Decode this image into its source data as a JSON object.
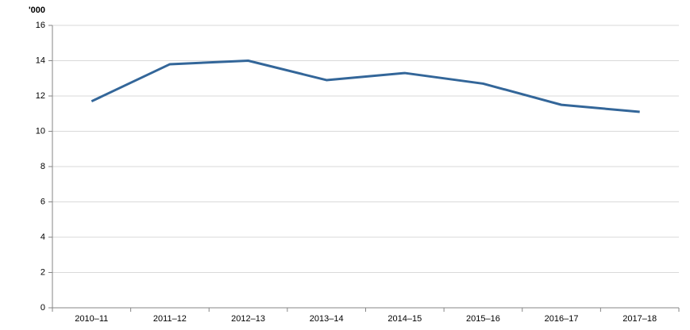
{
  "chart_data": {
    "type": "line",
    "y_unit_label": "'000",
    "categories": [
      "2010–11",
      "2011–12",
      "2012–13",
      "2013–14",
      "2014–15",
      "2015–16",
      "2016–17",
      "2017–18"
    ],
    "series": [
      {
        "name": "Series",
        "color": "#336699",
        "values": [
          11.7,
          13.8,
          14.0,
          12.9,
          13.3,
          12.7,
          11.5,
          11.1
        ]
      }
    ],
    "ylim": [
      0,
      16
    ],
    "yticks": [
      0,
      2,
      4,
      6,
      8,
      10,
      12,
      14,
      16
    ],
    "grid": true
  }
}
